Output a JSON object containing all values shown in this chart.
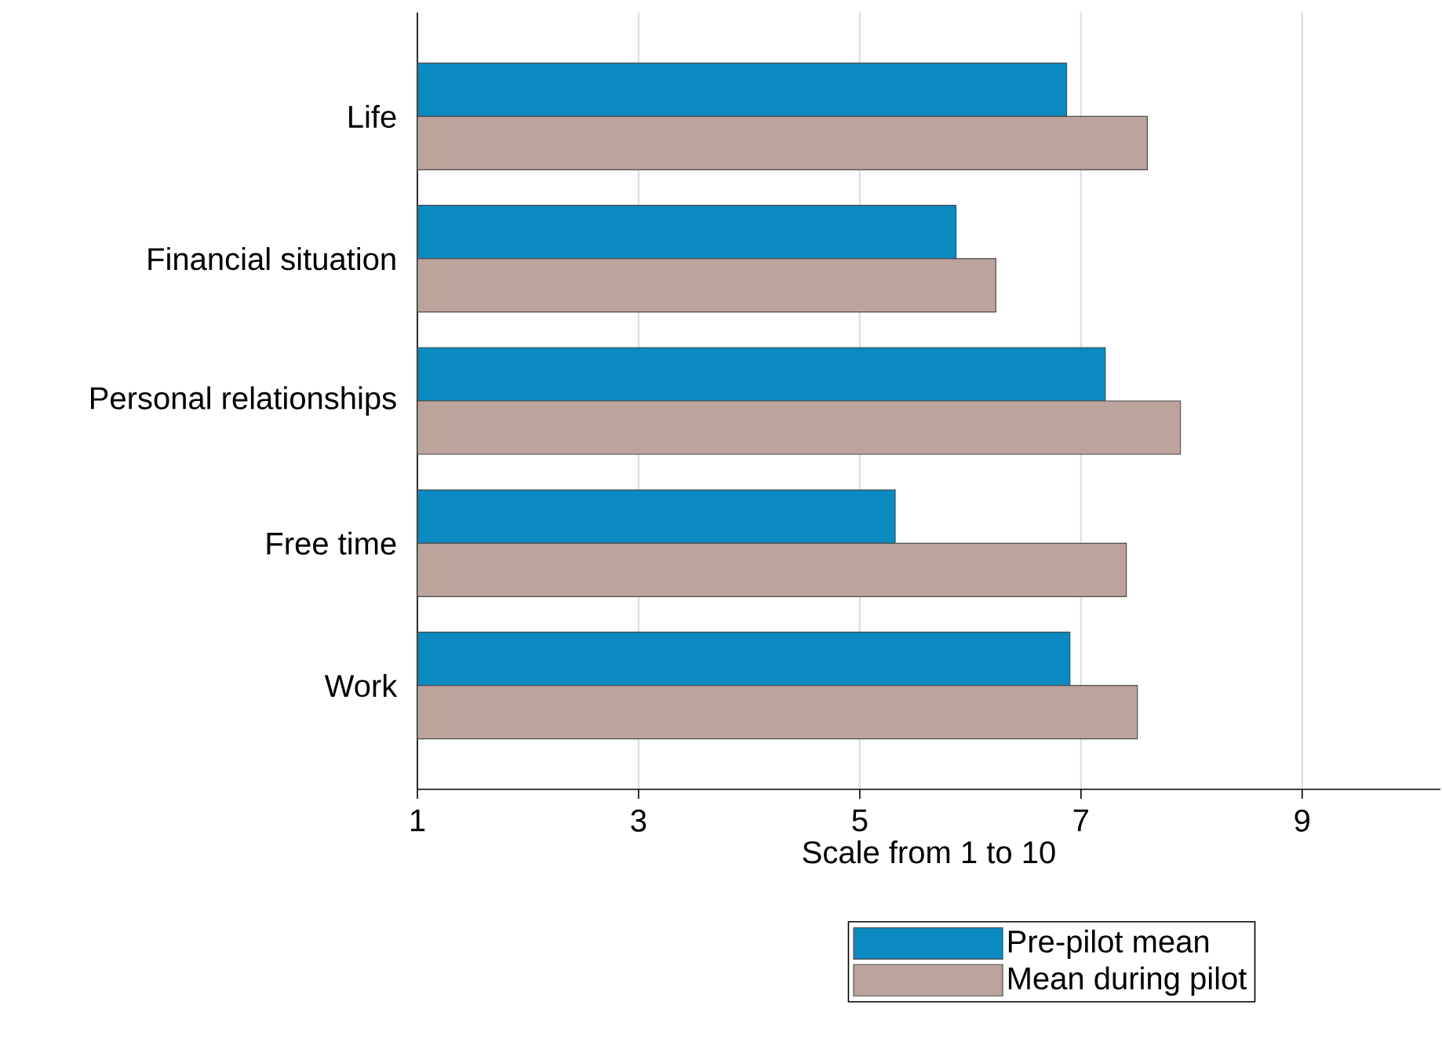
{
  "chart_data": {
    "type": "bar",
    "orientation": "horizontal",
    "xlabel": "Scale from 1 to 10",
    "categories": [
      "Life",
      "Financial situation",
      "Personal relationships",
      "Free time",
      "Work"
    ],
    "series": [
      {
        "name": "Pre-pilot mean",
        "color": "#0a8ac0",
        "values": [
          6.87,
          5.87,
          7.22,
          5.32,
          6.9
        ]
      },
      {
        "name": "Mean during pilot",
        "color": "#bca39c",
        "values": [
          7.6,
          6.23,
          7.9,
          7.41,
          7.51
        ]
      }
    ],
    "xlim": [
      1,
      10.25
    ],
    "xticks": [
      1,
      3,
      5,
      7,
      9
    ],
    "grid": "x",
    "legend": "bottom"
  }
}
